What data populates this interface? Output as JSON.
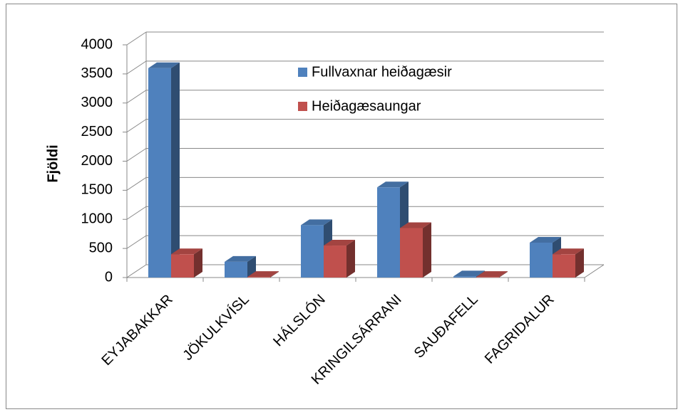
{
  "chart_data": {
    "type": "bar3d",
    "y_label": "Fjöldi",
    "categories": [
      "EYJABAKKAR",
      "JÖKULKVÍSL",
      "HÁLSLÓN",
      "KRINGILSÁRRANI",
      "SAUÐAFELL",
      "FAGRIDALUR"
    ],
    "series": [
      {
        "name": "Fullvaxnar heiðagæsir",
        "color": "#4f81bd",
        "values": [
          3600,
          270,
          900,
          1550,
          20,
          600
        ]
      },
      {
        "name": "Heiðagæsaungar",
        "color": "#c0504d",
        "values": [
          400,
          10,
          550,
          850,
          10,
          400
        ]
      }
    ],
    "ylim": [
      0,
      4000
    ],
    "yticks": [
      0,
      500,
      1000,
      1500,
      2000,
      2500,
      3000,
      3500,
      4000
    ],
    "grid": true
  }
}
